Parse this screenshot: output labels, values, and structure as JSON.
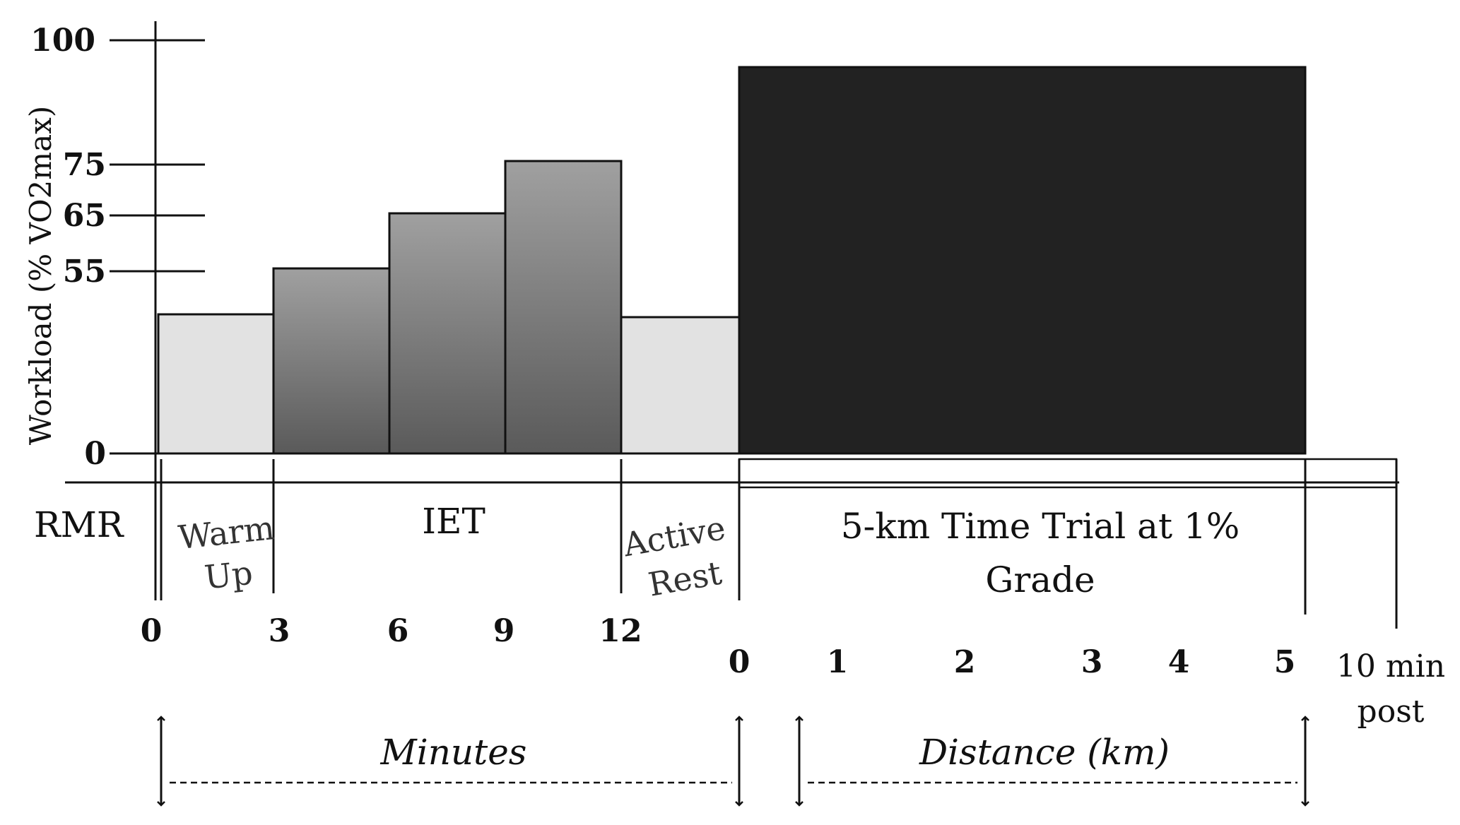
{
  "y_axis": {
    "title": "Workload (% VO2max)",
    "ticks": [
      "100",
      "75",
      "65",
      "55",
      "0"
    ]
  },
  "bars": [
    {
      "phase": "Warm-Up",
      "level_pct": 28,
      "fill": "#e2e2e2"
    },
    {
      "phase": "IET stage 1",
      "level_pct": 55,
      "fill": "gradient"
    },
    {
      "phase": "IET stage 2",
      "level_pct": 65,
      "fill": "gradient"
    },
    {
      "phase": "IET stage 3",
      "level_pct": 75,
      "fill": "gradient"
    },
    {
      "phase": "Active Rest",
      "level_pct": 27,
      "fill": "#e2e2e2"
    },
    {
      "phase": "5-km Time Trial",
      "level_pct": 94,
      "fill": "#222222"
    }
  ],
  "phases": {
    "rmr": "RMR",
    "warm_up_line1": "Warm",
    "warm_up_line2": "Up",
    "iet": "IET",
    "active_rest_line1": "Active",
    "active_rest_line2": "Rest",
    "time_trial_line1": "5-km Time Trial at 1%",
    "time_trial_line2": "Grade"
  },
  "minutes_ticks": [
    "0",
    "3",
    "6",
    "9",
    "12"
  ],
  "distance_ticks": [
    "0",
    "1",
    "2",
    "3",
    "4",
    "5"
  ],
  "post": {
    "line1": "10 min",
    "line2": "post"
  },
  "units": {
    "minutes": "Minutes",
    "distance": "Distance (km)"
  },
  "colors": {
    "light_bar": "#e2e2e2",
    "gradient_top": "#9a9a9a",
    "gradient_bottom": "#5c5c5c",
    "trial_bar": "#222222",
    "stroke": "#111111"
  }
}
